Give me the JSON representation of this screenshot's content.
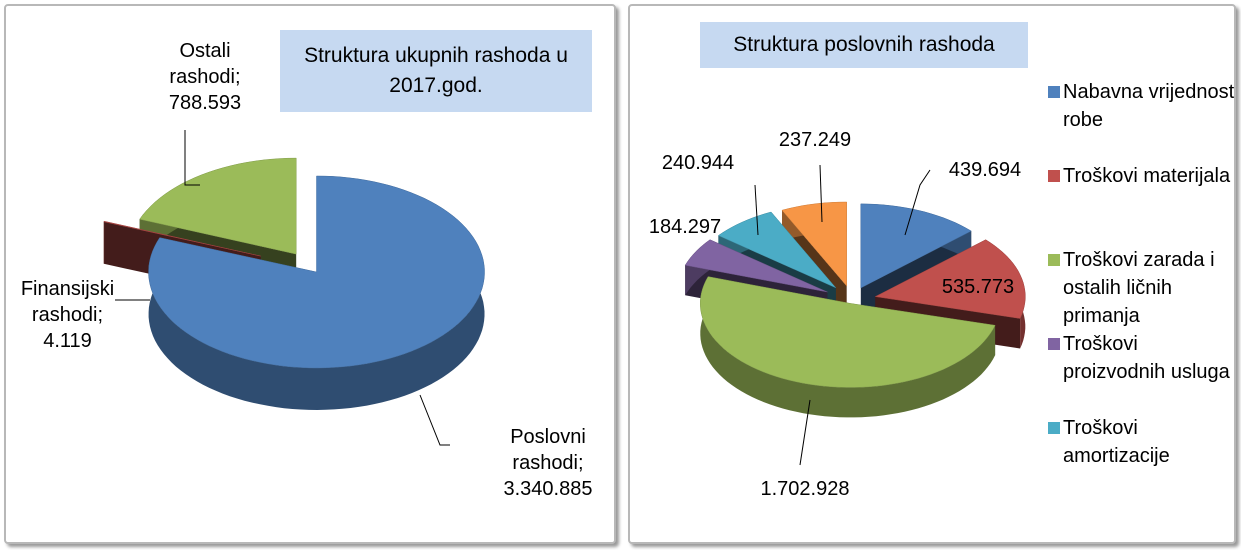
{
  "chart_data": [
    {
      "type": "pie3d",
      "title": "Struktura ukupnih rashoda u 2017.god.",
      "categories": [
        "Poslovni rashodi",
        "Finansijski rashodi",
        "Ostali rashodi"
      ],
      "values": [
        3340885,
        4119,
        788593
      ],
      "value_labels": [
        "3.340.885",
        "4.119",
        "788.593"
      ],
      "label_separator": ";",
      "colors": [
        "#4f81bd",
        "#c0504d",
        "#9bbb59"
      ]
    },
    {
      "type": "pie3d",
      "title": "Struktura poslovnih rashoda",
      "categories": [
        "Nabavna vrijednost robe",
        "Troškovi materijala",
        "Troškovi zarada i ostalih ličnih primanja",
        "Troškovi proizvodnih usluga",
        "Troškovi amortizacije",
        null
      ],
      "values": [
        439694,
        535773,
        1702928,
        184297,
        240944,
        237249
      ],
      "value_labels": [
        "439.694",
        "535.773",
        "1.702.928",
        "184.297",
        "240.944",
        "237.249"
      ],
      "colors": [
        "#4f81bd",
        "#c0504d",
        "#9bbb59",
        "#8064a2",
        "#4bacc6",
        "#f79646"
      ],
      "legend": "right"
    }
  ]
}
